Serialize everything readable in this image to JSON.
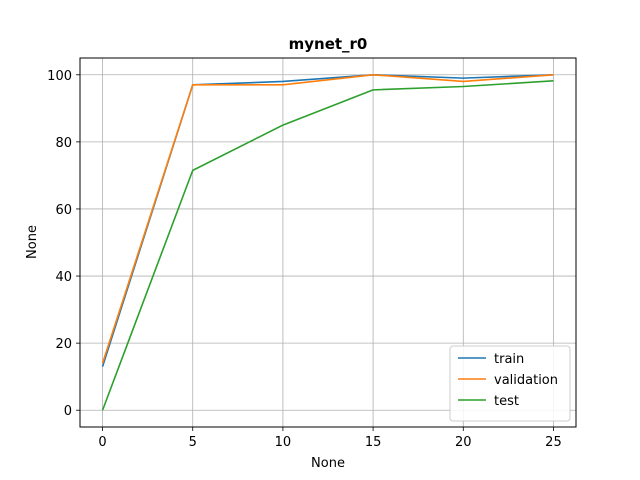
{
  "chart_data": {
    "type": "line",
    "title": "mynet_r0",
    "xlabel": "None",
    "ylabel": "None",
    "x": [
      0,
      5,
      10,
      15,
      20,
      25
    ],
    "xlim": [
      -1.25,
      26.25
    ],
    "ylim": [
      -5,
      105
    ],
    "xticks": [
      0,
      5,
      10,
      15,
      20,
      25
    ],
    "yticks": [
      0,
      20,
      40,
      60,
      80,
      100
    ],
    "grid": true,
    "legend_position": "lower-right",
    "series": [
      {
        "name": "train",
        "color": "#1f77b4",
        "values": [
          13,
          97,
          98,
          100,
          99,
          100
        ]
      },
      {
        "name": "validation",
        "color": "#ff7f0e",
        "values": [
          14,
          97,
          97,
          100,
          98,
          100
        ]
      },
      {
        "name": "test",
        "color": "#2ca02c",
        "values": [
          0,
          71.5,
          85,
          95.5,
          96.5,
          98.2
        ]
      }
    ]
  }
}
